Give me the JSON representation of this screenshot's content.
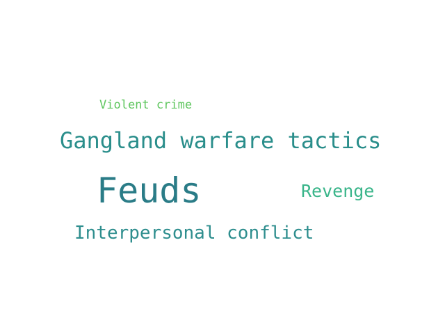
{
  "word_cloud": {
    "words": [
      {
        "text": "Violent crime",
        "color": "#5fc65f"
      },
      {
        "text": "Gangland warfare tactics",
        "color": "#2a8e8b"
      },
      {
        "text": "Feuds",
        "color": "#2a7c87"
      },
      {
        "text": "Revenge",
        "color": "#3ab58a"
      },
      {
        "text": "Interpersonal conflict",
        "color": "#2e8e8e"
      }
    ]
  }
}
